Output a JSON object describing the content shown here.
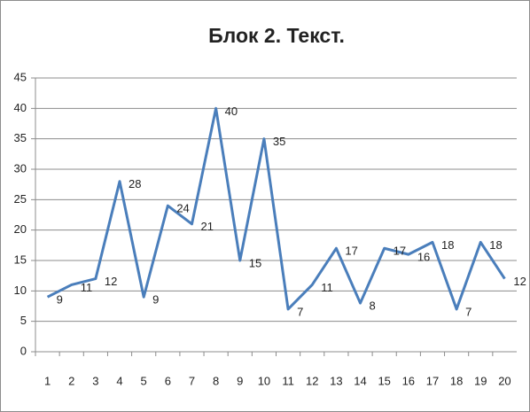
{
  "chart_data": {
    "type": "line",
    "title": "Блок 2. Текст.",
    "categories": [
      1,
      2,
      3,
      4,
      5,
      6,
      7,
      8,
      9,
      10,
      11,
      12,
      13,
      14,
      15,
      16,
      17,
      18,
      19,
      20
    ],
    "values": [
      9,
      11,
      12,
      28,
      9,
      24,
      21,
      40,
      15,
      35,
      7,
      11,
      17,
      8,
      17,
      16,
      18,
      7,
      18,
      12
    ],
    "color": "#4a7ebb",
    "ylim": [
      0,
      45
    ],
    "yticks": [
      0,
      5,
      10,
      15,
      20,
      25,
      30,
      35,
      40,
      45
    ],
    "grid": true
  }
}
